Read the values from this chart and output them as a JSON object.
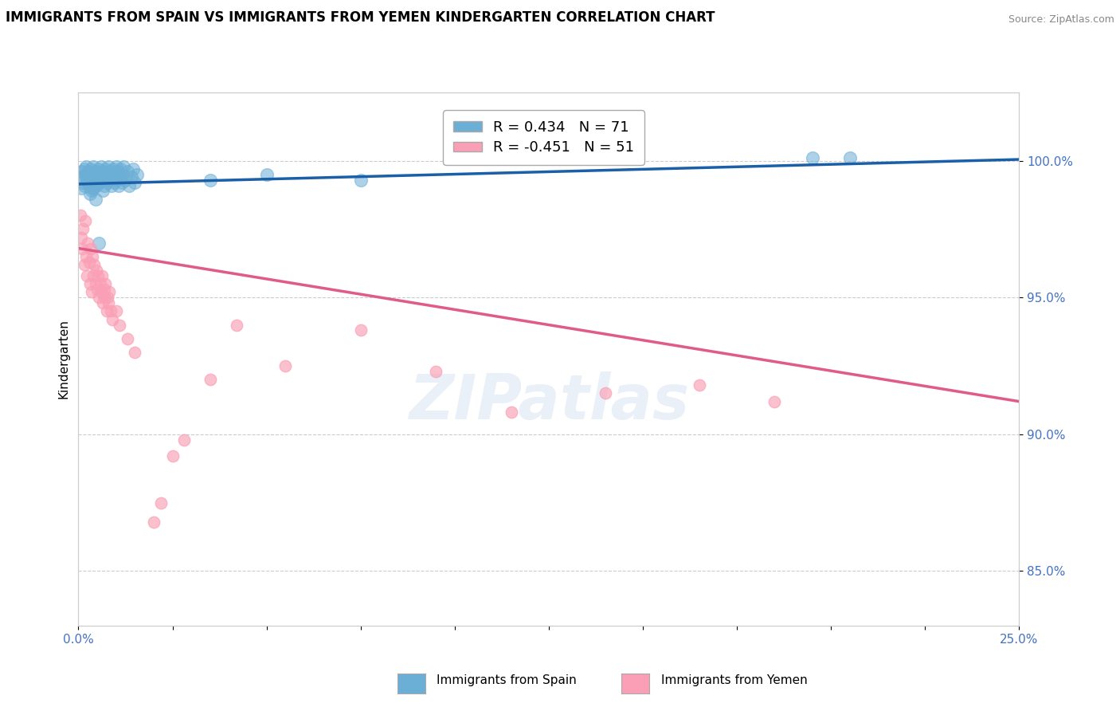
{
  "title": "IMMIGRANTS FROM SPAIN VS IMMIGRANTS FROM YEMEN KINDERGARTEN CORRELATION CHART",
  "source": "Source: ZipAtlas.com",
  "ylabel_ticks": [
    85.0,
    90.0,
    95.0,
    100.0
  ],
  "xmin": 0.0,
  "xmax": 25.0,
  "ymin": 83.0,
  "ymax": 102.5,
  "legend_blue": "R = 0.434   N = 71",
  "legend_pink": "R = -0.451   N = 51",
  "blue_color": "#6baed6",
  "pink_color": "#fa9fb5",
  "trend_blue": "#1a5fa8",
  "trend_pink": "#e05a8a",
  "blue_trend_x0": 0.0,
  "blue_trend_y0": 99.15,
  "blue_trend_x1": 25.0,
  "blue_trend_y1": 100.05,
  "pink_trend_x0": 0.0,
  "pink_trend_y0": 96.8,
  "pink_trend_x1": 25.0,
  "pink_trend_y1": 91.2,
  "blue_scatter_x": [
    0.05,
    0.08,
    0.1,
    0.12,
    0.15,
    0.18,
    0.2,
    0.22,
    0.25,
    0.28,
    0.3,
    0.32,
    0.35,
    0.38,
    0.4,
    0.42,
    0.45,
    0.48,
    0.5,
    0.52,
    0.55,
    0.58,
    0.6,
    0.62,
    0.65,
    0.68,
    0.7,
    0.72,
    0.75,
    0.78,
    0.8,
    0.82,
    0.85,
    0.88,
    0.9,
    0.92,
    0.95,
    0.98,
    1.0,
    1.02,
    1.05,
    1.08,
    1.1,
    1.12,
    1.15,
    1.18,
    1.2,
    1.25,
    1.3,
    1.35,
    1.4,
    1.45,
    1.5,
    1.55,
    0.3,
    0.4,
    0.5,
    0.6,
    0.15,
    0.25,
    0.35,
    3.5,
    5.0,
    7.5,
    19.5,
    20.5,
    0.55,
    0.45,
    0.65,
    0.35,
    0.2
  ],
  "blue_scatter_y": [
    99.4,
    99.0,
    99.6,
    99.2,
    99.7,
    99.5,
    99.8,
    99.3,
    99.6,
    99.1,
    99.4,
    99.7,
    99.2,
    99.5,
    99.8,
    99.3,
    99.6,
    99.1,
    99.4,
    99.7,
    99.2,
    99.5,
    99.8,
    99.3,
    99.6,
    99.1,
    99.4,
    99.7,
    99.2,
    99.5,
    99.8,
    99.3,
    99.6,
    99.1,
    99.4,
    99.7,
    99.2,
    99.5,
    99.8,
    99.3,
    99.6,
    99.1,
    99.4,
    99.7,
    99.2,
    99.5,
    99.8,
    99.3,
    99.6,
    99.1,
    99.4,
    99.7,
    99.2,
    99.5,
    98.8,
    99.0,
    99.2,
    99.4,
    99.1,
    99.3,
    98.9,
    99.3,
    99.5,
    99.3,
    100.1,
    100.1,
    97.0,
    98.6,
    98.9,
    99.0,
    99.5
  ],
  "pink_scatter_x": [
    0.05,
    0.08,
    0.1,
    0.12,
    0.15,
    0.18,
    0.2,
    0.22,
    0.25,
    0.28,
    0.3,
    0.32,
    0.35,
    0.38,
    0.4,
    0.42,
    0.45,
    0.48,
    0.5,
    0.52,
    0.55,
    0.58,
    0.6,
    0.62,
    0.65,
    0.68,
    0.7,
    0.72,
    0.75,
    0.78,
    0.8,
    0.82,
    0.85,
    0.9,
    1.0,
    1.1,
    1.3,
    1.5,
    2.0,
    2.2,
    2.5,
    2.8,
    3.5,
    4.2,
    5.5,
    7.5,
    9.5,
    11.5,
    14.0,
    16.5,
    18.5
  ],
  "pink_scatter_y": [
    98.0,
    97.2,
    96.8,
    97.5,
    96.2,
    97.8,
    96.5,
    95.8,
    97.0,
    96.3,
    95.5,
    96.8,
    95.2,
    96.5,
    95.8,
    96.2,
    95.5,
    96.0,
    95.3,
    95.8,
    95.0,
    95.5,
    95.2,
    95.8,
    94.8,
    95.3,
    95.0,
    95.5,
    94.5,
    95.0,
    94.8,
    95.2,
    94.5,
    94.2,
    94.5,
    94.0,
    93.5,
    93.0,
    86.8,
    87.5,
    89.2,
    89.8,
    92.0,
    94.0,
    92.5,
    93.8,
    92.3,
    90.8,
    91.5,
    91.8,
    91.2
  ]
}
